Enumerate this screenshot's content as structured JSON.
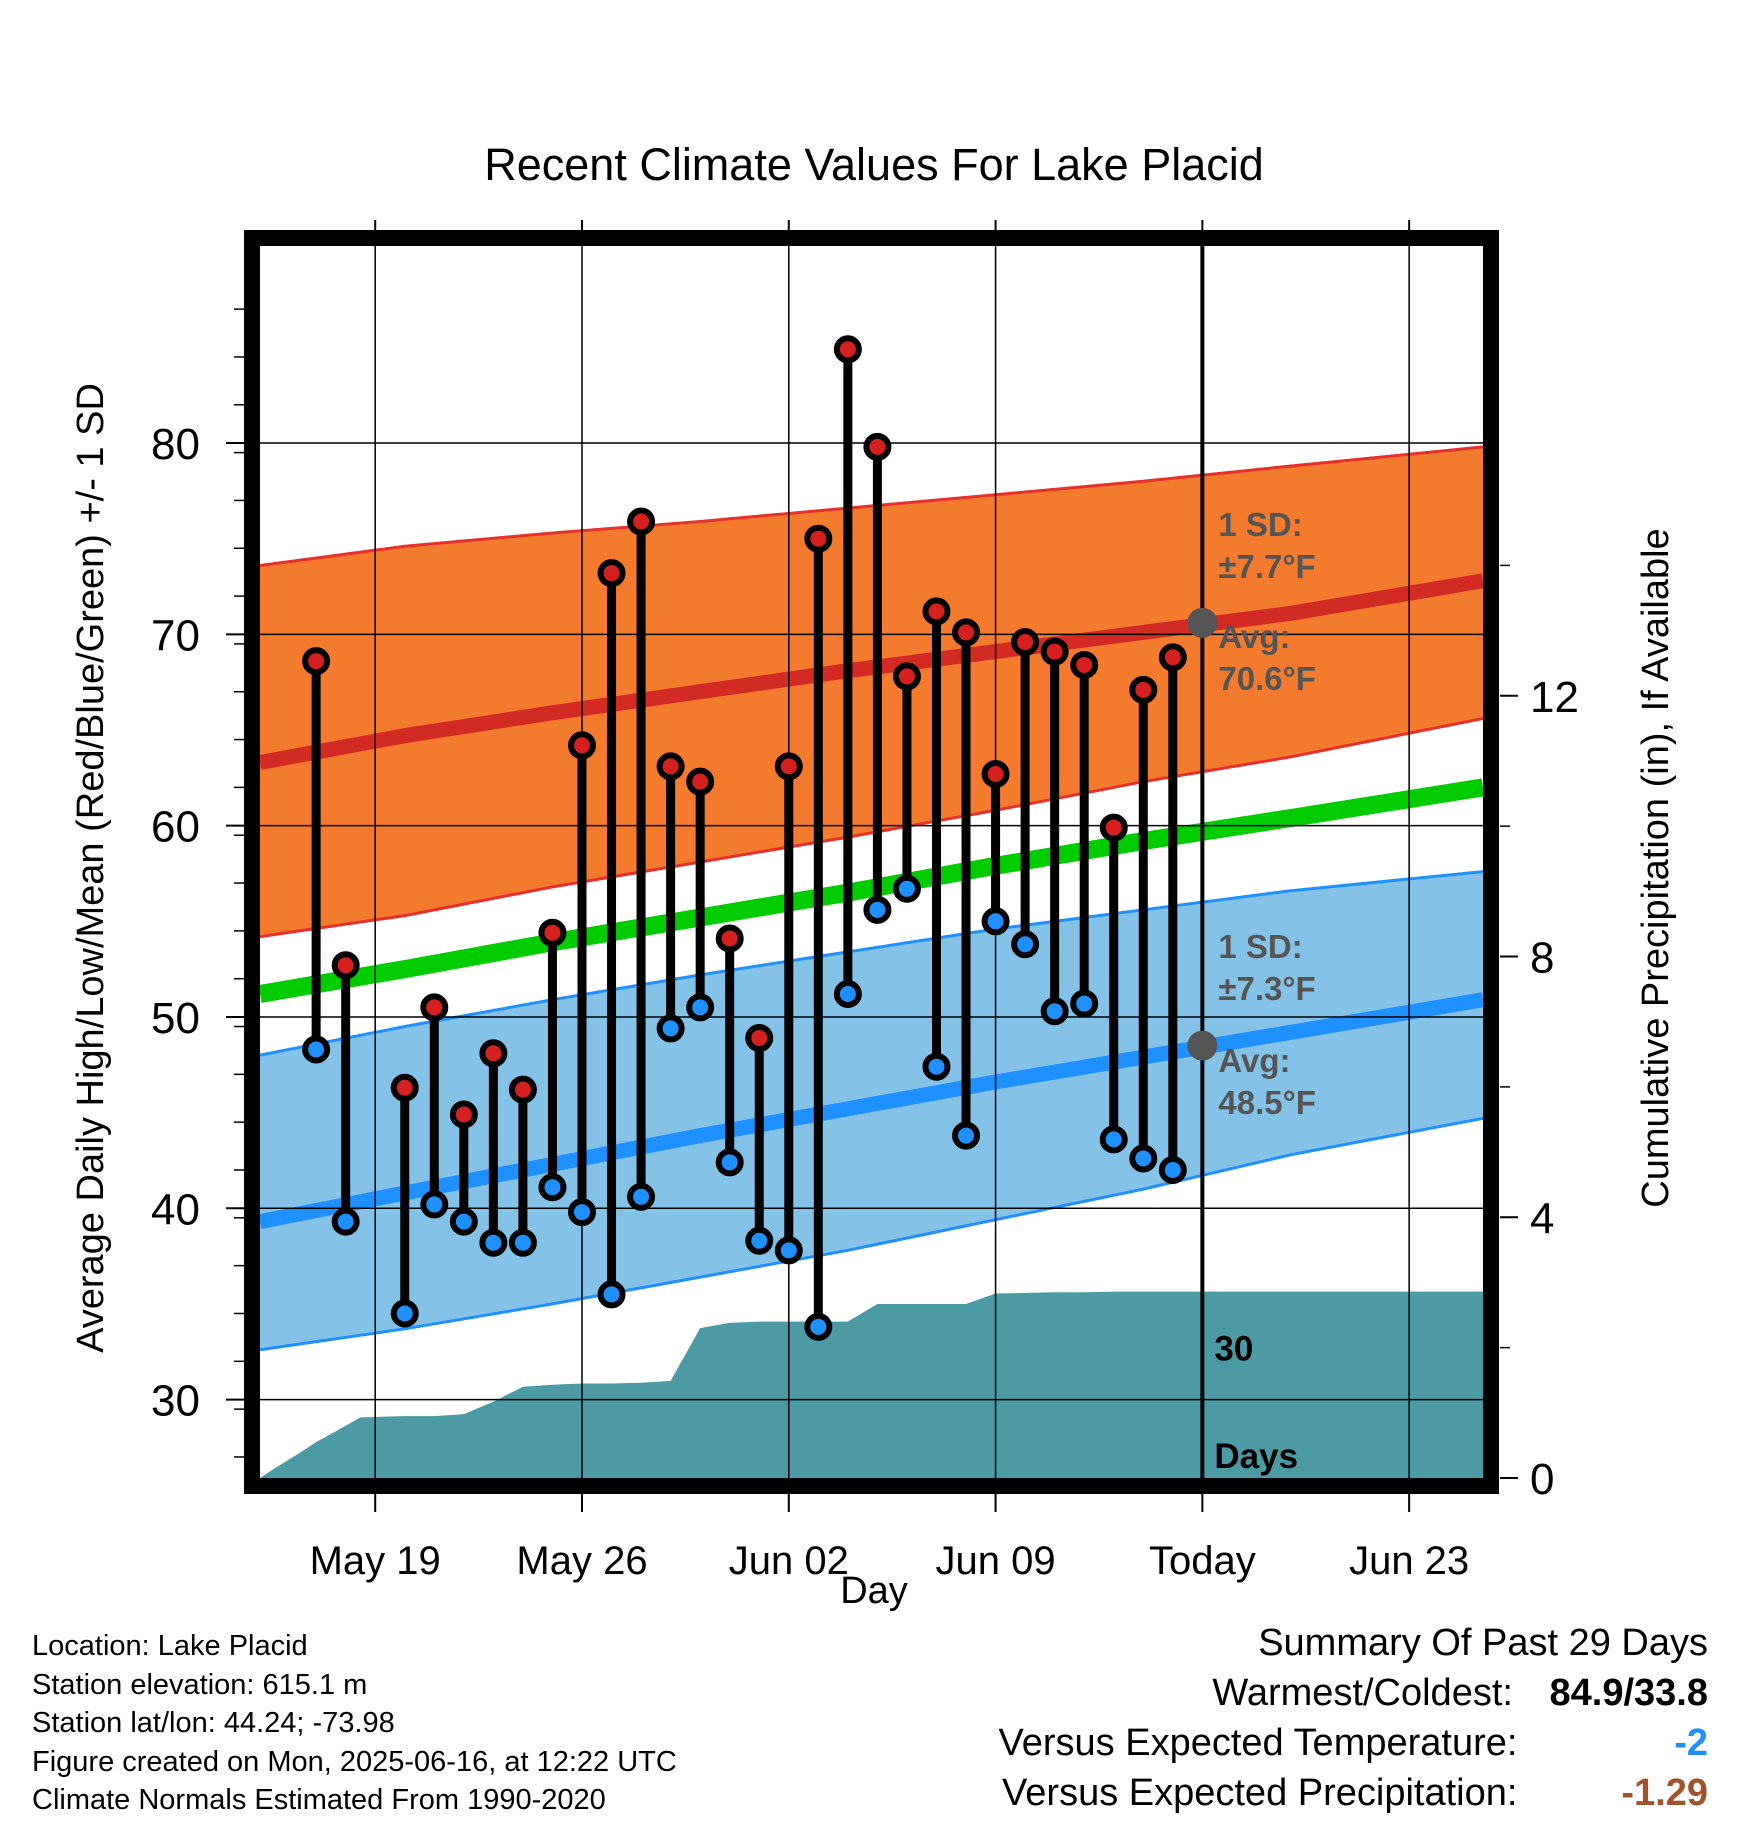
{
  "chart_data": {
    "type": "line",
    "title": "Recent Climate Values For Lake Placid",
    "xlabel": "Day",
    "ylabel": "Average Daily High/Low/Mean (Red/Blue/Green) +/- 1 SD",
    "y2label": "Cumulative Precipitation (in), If Available",
    "ylim": [
      25.9,
      90.3
    ],
    "y2lim": [
      0,
      18.9
    ],
    "xlim": [
      -0.9,
      40.5
    ],
    "x_ticks": [
      {
        "x": 3,
        "label": "May 19"
      },
      {
        "x": 10,
        "label": "May 26"
      },
      {
        "x": 17,
        "label": "Jun 02"
      },
      {
        "x": 24,
        "label": "Jun 09"
      },
      {
        "x": 31,
        "label": "Today"
      },
      {
        "x": 38,
        "label": "Jun 23"
      }
    ],
    "y_ticks": [
      30,
      40,
      50,
      60,
      70,
      80
    ],
    "y2_ticks": [
      0,
      4,
      8,
      12
    ],
    "grid": true,
    "today_x": 31,
    "today_label": [
      "30",
      "Days"
    ],
    "normals": {
      "x": [
        -0.9,
        4,
        9,
        14,
        19,
        24,
        29,
        34,
        40.5
      ],
      "high_mean": [
        63.3,
        64.7,
        65.9,
        67.0,
        68.1,
        69.1,
        70.1,
        71.1,
        72.8
      ],
      "high_upper": [
        73.6,
        74.6,
        75.3,
        75.9,
        76.6,
        77.3,
        78.0,
        78.8,
        79.8
      ],
      "high_lower": [
        54.2,
        55.3,
        56.8,
        58.1,
        59.4,
        60.8,
        62.3,
        63.6,
        65.6
      ],
      "mean": [
        51.2,
        52.5,
        53.9,
        55.2,
        56.5,
        57.9,
        59.2,
        60.4,
        62.0
      ],
      "low_mean": [
        39.3,
        40.8,
        42.3,
        43.8,
        45.2,
        46.6,
        47.9,
        49.2,
        50.9
      ],
      "low_upper": [
        48.0,
        49.5,
        50.9,
        52.2,
        53.4,
        54.6,
        55.6,
        56.6,
        57.6
      ],
      "low_lower": [
        32.6,
        33.7,
        35.0,
        36.4,
        37.8,
        39.4,
        41.0,
        42.8,
        44.7
      ]
    },
    "series": [
      {
        "name": "High",
        "color": "#d62020",
        "x": [
          1,
          2,
          4,
          5,
          6,
          7,
          8,
          9,
          10,
          11,
          12,
          13,
          14,
          15,
          16,
          17,
          18,
          19,
          20,
          21,
          22,
          23,
          24,
          25,
          26,
          27,
          28,
          29,
          30
        ],
        "values": [
          68.6,
          52.7,
          46.3,
          50.5,
          44.9,
          48.1,
          46.2,
          54.4,
          64.2,
          73.2,
          75.9,
          63.1,
          62.3,
          54.1,
          48.9,
          63.1,
          75.0,
          84.9,
          79.8,
          67.8,
          71.2,
          70.1,
          62.7,
          69.6,
          69.1,
          68.4,
          59.9,
          67.1,
          68.8
        ]
      },
      {
        "name": "Low",
        "color": "#1e90ff",
        "x": [
          1,
          2,
          4,
          5,
          6,
          7,
          8,
          9,
          10,
          11,
          12,
          13,
          14,
          15,
          16,
          17,
          18,
          19,
          20,
          21,
          22,
          23,
          24,
          25,
          26,
          27,
          28,
          29,
          30
        ],
        "values": [
          48.3,
          39.3,
          34.5,
          40.2,
          39.3,
          38.2,
          38.2,
          41.1,
          39.8,
          35.5,
          40.6,
          49.4,
          50.5,
          42.4,
          38.3,
          37.8,
          33.8,
          51.2,
          55.6,
          56.7,
          47.4,
          43.8,
          55.0,
          53.8,
          50.3,
          50.7,
          43.6,
          42.6,
          42.0
        ]
      }
    ],
    "precipitation": {
      "x": [
        -0.9,
        -0.4,
        0.5,
        1,
        1.6,
        2.5,
        4,
        5,
        6,
        7,
        8,
        9,
        10,
        11,
        12,
        13,
        14,
        15,
        16,
        17,
        18,
        19,
        20,
        21,
        22,
        23,
        24,
        25,
        26,
        27,
        28,
        29,
        30,
        31,
        32,
        33,
        34,
        35,
        36,
        37,
        38,
        39,
        40.5
      ],
      "values": [
        0,
        0.15,
        0.4,
        0.55,
        0.7,
        0.93,
        0.95,
        0.95,
        0.98,
        1.17,
        1.4,
        1.43,
        1.45,
        1.45,
        1.46,
        1.49,
        2.3,
        2.38,
        2.4,
        2.4,
        2.4,
        2.4,
        2.67,
        2.67,
        2.67,
        2.67,
        2.83,
        2.84,
        2.85,
        2.85,
        2.86,
        2.86,
        2.86,
        2.86,
        2.86,
        2.86,
        2.86,
        2.86,
        2.86,
        2.86,
        2.86,
        2.86,
        2.86
      ]
    },
    "annotations": {
      "high_sd": [
        "1 SD:",
        "±7.7°F"
      ],
      "high_avg": [
        "Avg:",
        "70.6°F"
      ],
      "high_avg_value": 70.6,
      "low_sd": [
        "1 SD:",
        "±7.3°F"
      ],
      "low_avg": [
        "Avg:",
        "48.5°F"
      ],
      "low_avg_value": 48.5
    },
    "colors": {
      "high_band": "#f47a2e",
      "high_line": "#d42a24",
      "high_band_edge": "#e8302a",
      "low_band": "#85c2e8",
      "low_line": "#1e90ff",
      "low_band_edge": "#1e90ff",
      "mean_line": "#00cc00",
      "precip": "#4b9aa4",
      "annotation": "#555555"
    }
  },
  "footer": {
    "lines": [
      "Location: Lake Placid",
      "Station elevation: 615.1 m",
      "Station lat/lon: 44.24; -73.98",
      "Figure created on Mon, 2025-06-16, at 12:22 UTC",
      "Climate Normals Estimated From 1990-2020"
    ]
  },
  "summary": {
    "title": "Summary Of Past 29 Days",
    "warm_cold_label": "Warmest/Coldest:",
    "warm_cold_value": "84.9/33.8",
    "temp_label": "Versus Expected Temperature:",
    "temp_value": "-2",
    "temp_color": "#1e90ff",
    "precip_label": "Versus Expected Precipitation:",
    "precip_value": "-1.29",
    "precip_color": "#a0522d"
  }
}
